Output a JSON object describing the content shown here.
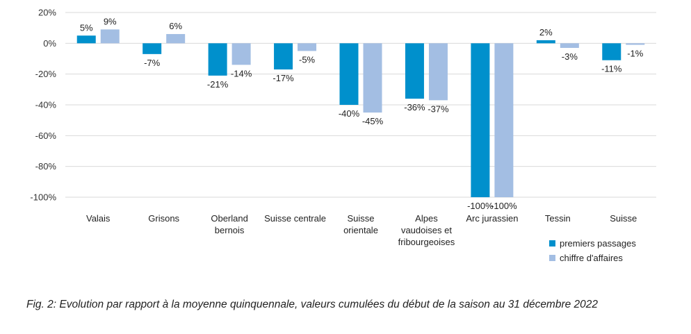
{
  "chart_data": {
    "type": "bar",
    "categories": [
      [
        "Valais"
      ],
      [
        "Grisons"
      ],
      [
        "Oberland",
        "bernois"
      ],
      [
        "Suisse centrale"
      ],
      [
        "Suisse",
        "orientale"
      ],
      [
        "Alpes",
        "vaudoises et",
        "fribourgeoises"
      ],
      [
        "Arc jurassien"
      ],
      [
        "Tessin"
      ],
      [
        "Suisse"
      ]
    ],
    "series": [
      {
        "name": "premiers passages",
        "color": "#0090cc",
        "values": [
          5,
          -7,
          -21,
          -17,
          -40,
          -36,
          -100,
          2,
          -11
        ],
        "labels": [
          "5%",
          "-7%",
          "-21%",
          "-17%",
          "-40%",
          "-36%",
          "-100%",
          "2%",
          "-11%"
        ]
      },
      {
        "name": "chiffre d'affaires",
        "color": "#a3bee3",
        "values": [
          9,
          6,
          -14,
          -5,
          -45,
          -37,
          -100,
          -3,
          -1
        ],
        "labels": [
          "9%",
          "6%",
          "-14%",
          "-5%",
          "-45%",
          "-37%",
          "-100%",
          "-3%",
          "-1%"
        ]
      }
    ],
    "ylim": [
      -100,
      20
    ],
    "yticks": [
      20,
      0,
      -20,
      -40,
      -60,
      -80,
      -100
    ],
    "ytick_labels": [
      "20%",
      "0%",
      "-20%",
      "-40%",
      "-60%",
      "-80%",
      "-100%"
    ],
    "grid": true,
    "legend_position": "bottom-right"
  },
  "caption": "Fig. 2: Evolution par rapport à la moyenne quinquennale, valeurs cumulées du début de la saison au 31 décembre 2022"
}
